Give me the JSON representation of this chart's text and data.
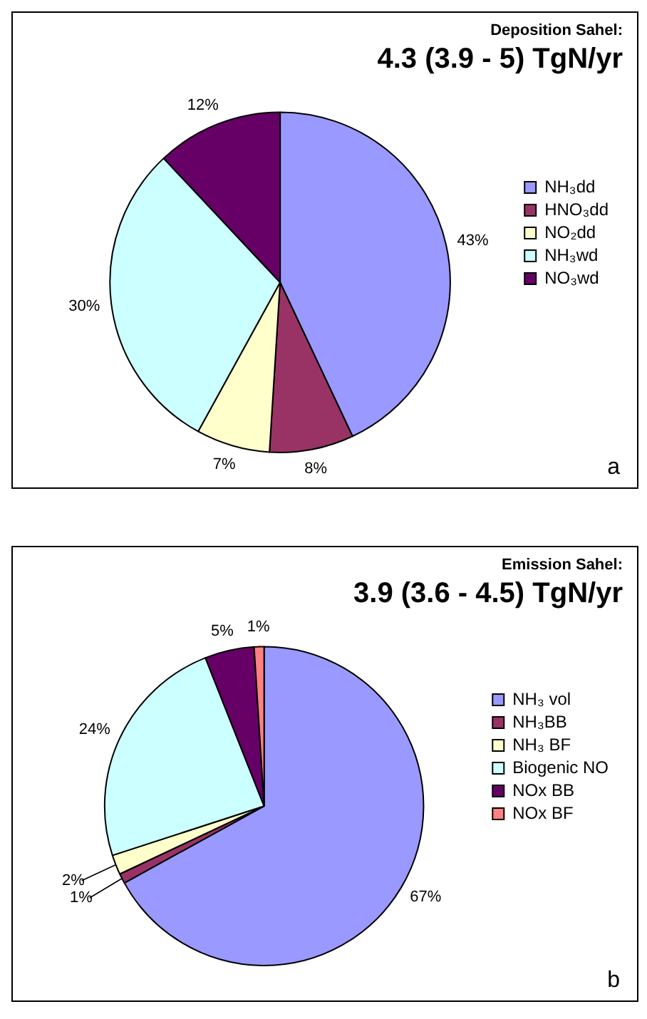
{
  "chart_data": [
    {
      "type": "pie",
      "title": "Deposition Sahel:",
      "subtitle": "4.3 (3.9 - 5) TgN/yr",
      "categories": [
        "NH₃dd",
        "HNO₃dd",
        "NO₂dd",
        "NH₃wd",
        "NO₃wd"
      ],
      "values": [
        43,
        8,
        7,
        30,
        12
      ],
      "colors": [
        "#9999ff",
        "#993366",
        "#ffffcc",
        "#ccffff",
        "#660066"
      ],
      "value_labels": [
        "43%",
        "8%",
        "7%",
        "30%",
        "12%"
      ],
      "legend": "right",
      "annotations": [
        "a"
      ]
    },
    {
      "type": "pie",
      "title": "Emission Sahel:",
      "subtitle": "3.9 (3.6 - 4.5) TgN/yr",
      "categories": [
        "NH₃ vol",
        "NH₃BB",
        "NH₃ BF",
        "Biogenic NO",
        "NOx BB",
        "NOx BF"
      ],
      "values": [
        67,
        1,
        2,
        24,
        5,
        1
      ],
      "colors": [
        "#9999ff",
        "#993366",
        "#ffffcc",
        "#ccffff",
        "#660066",
        "#ff8080"
      ],
      "value_labels": [
        "67%",
        "1%",
        "2%",
        "24%",
        "5%",
        "1%"
      ],
      "legend": "right",
      "annotations": [
        "b"
      ]
    }
  ]
}
